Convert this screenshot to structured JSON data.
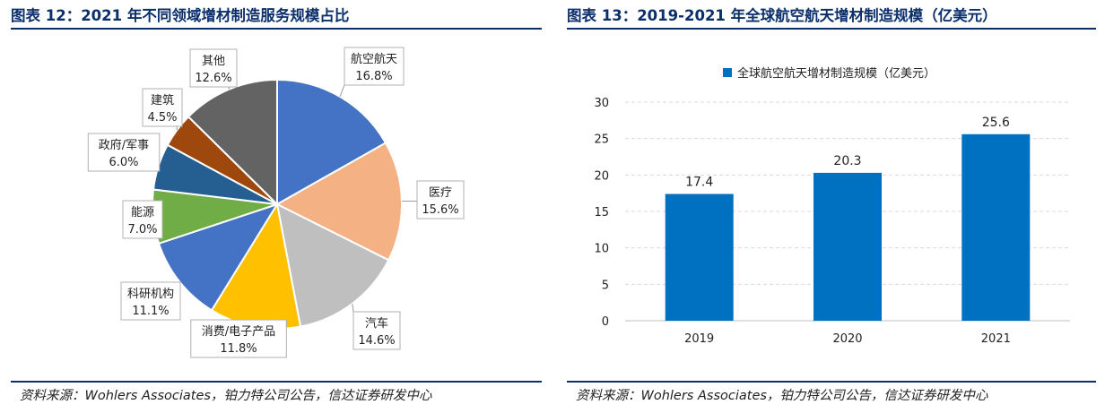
{
  "left": {
    "title": "图表 12：2021 年不同领域增材制造服务规模占比",
    "source": "资料来源：Wohlers Associates，铂力特公司公告，信达证券研发中心"
  },
  "right": {
    "title": "图表 13：2019-2021 年全球航空航天增材制造规模（亿美元）",
    "source": "资料来源：Wohlers Associates，铂力特公司公告，信达证券研发中心"
  },
  "chart_data": [
    {
      "type": "pie",
      "title": "",
      "slices": [
        {
          "name": "航空航天",
          "value": 16.8,
          "label": "16.8%",
          "color": "#4472c4"
        },
        {
          "name": "医疗",
          "value": 15.6,
          "label": "15.6%",
          "color": "#f4b183"
        },
        {
          "name": "汽车",
          "value": 14.6,
          "label": "14.6%",
          "color": "#bfbfbf"
        },
        {
          "name": "消费/电子产品",
          "value": 11.8,
          "label": "11.8%",
          "color": "#ffc000"
        },
        {
          "name": "科研机构",
          "value": 11.1,
          "label": "11.1%",
          "color": "#4472c4"
        },
        {
          "name": "能源",
          "value": 7.0,
          "label": "7.0%",
          "color": "#70ad47"
        },
        {
          "name": "政府/军事",
          "value": 6.0,
          "label": "6.0%",
          "color": "#255e91"
        },
        {
          "name": "建筑",
          "value": 4.5,
          "label": "4.5%",
          "color": "#9e480e"
        },
        {
          "name": "其他",
          "value": 12.6,
          "label": "12.6%",
          "color": "#636363"
        }
      ]
    },
    {
      "type": "bar",
      "title": "",
      "categories": [
        "2019",
        "2020",
        "2021"
      ],
      "series": [
        {
          "name": "全球航空航天增材制造规模（亿美元）",
          "values": [
            17.4,
            20.3,
            25.6
          ],
          "color": "#0070c0"
        }
      ],
      "data_labels": [
        "17.4",
        "20.3",
        "25.6"
      ],
      "ylim": [
        0,
        30
      ],
      "yticks": [
        "0",
        "5",
        "10",
        "15",
        "20",
        "25",
        "30"
      ],
      "grid": true,
      "legend_position": "top"
    }
  ]
}
